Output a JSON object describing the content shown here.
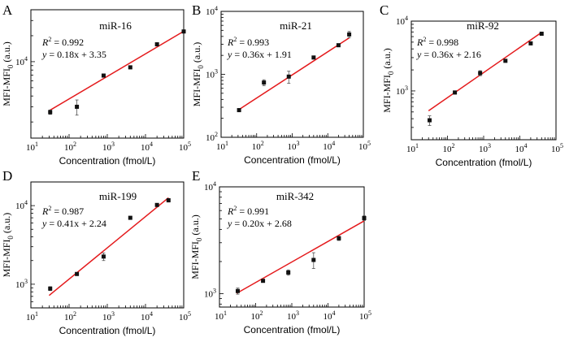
{
  "colors": {
    "fit_line": "#e41a1c",
    "points": "#111111",
    "axis": "#000000"
  },
  "chart_data": [
    {
      "panel": "A",
      "type": "scatter",
      "title": "miR-16",
      "xlabel": "Concentration (fmol/L)",
      "ylabel": "MFI-MFI0 (a.u.)",
      "ylabel_main": "MFI-MFI",
      "ylabel_sub": "0",
      "ylabel_unit": " (a.u.)",
      "xscale": "log",
      "yscale": "log",
      "xlim": [
        10,
        100000
      ],
      "ylim": [
        1300,
        40000
      ],
      "xticks": [
        {
          "v": 10,
          "e": "1"
        },
        {
          "v": 100,
          "e": "2"
        },
        {
          "v": 1000,
          "e": "3"
        },
        {
          "v": 10000,
          "e": "4"
        },
        {
          "v": 100000,
          "e": "5"
        }
      ],
      "yticks": [
        {
          "v": 10000,
          "e": "4"
        }
      ],
      "r2_label": "R",
      "r2_exp": "2",
      "r2_value": " = 0.992",
      "eq_y": "y",
      "eq_rest": " = 0.18x + 3.35",
      "x": [
        32,
        160,
        800,
        4000,
        20000,
        100000
      ],
      "y": [
        2600,
        3000,
        6900,
        8600,
        15900,
        22400
      ],
      "yerr": [
        150,
        600,
        300,
        350,
        500,
        600
      ],
      "fit": [
        [
          30,
          2700
        ],
        [
          100000,
          22500
        ]
      ]
    },
    {
      "panel": "B",
      "type": "scatter",
      "title": "miR-21",
      "xlabel": "Concentration (fmol/L)",
      "ylabel": "MFI-MFI0 (a.u.)",
      "ylabel_main": "MFI-MFI",
      "ylabel_sub": "0",
      "ylabel_unit": " (a.u.)",
      "xscale": "log",
      "yscale": "log",
      "xlim": [
        10,
        100000
      ],
      "ylim": [
        100,
        10000
      ],
      "xticks": [
        {
          "v": 10,
          "e": "1"
        },
        {
          "v": 100,
          "e": "2"
        },
        {
          "v": 1000,
          "e": "3"
        },
        {
          "v": 10000,
          "e": "4"
        },
        {
          "v": 100000,
          "e": "5"
        }
      ],
      "yticks": [
        {
          "v": 100,
          "e": "2"
        },
        {
          "v": 1000,
          "e": "3"
        },
        {
          "v": 10000,
          "e": "4"
        }
      ],
      "r2_label": "R",
      "r2_exp": "2",
      "r2_value": " = 0.993",
      "eq_y": "y",
      "eq_rest": " = 0.36x + 1.91",
      "x": [
        32,
        160,
        800,
        4000,
        20000,
        40000
      ],
      "y": [
        270,
        740,
        920,
        1850,
        2900,
        4300
      ],
      "yerr": [
        15,
        80,
        200,
        100,
        120,
        500
      ],
      "fit": [
        [
          30,
          270
        ],
        [
          40000,
          3800
        ]
      ]
    },
    {
      "panel": "C",
      "type": "scatter",
      "title": "miR-92",
      "xlabel": "Concentration (fmol/L)",
      "ylabel": "MFI-MFI0 (a.u.)",
      "ylabel_main": "MFI-MFI",
      "ylabel_sub": "0",
      "ylabel_unit": " (a.u.)",
      "xscale": "log",
      "yscale": "log",
      "xlim": [
        10,
        100000
      ],
      "ylim": [
        200,
        10000
      ],
      "xticks": [
        {
          "v": 10,
          "e": "1"
        },
        {
          "v": 100,
          "e": "2"
        },
        {
          "v": 1000,
          "e": "3"
        },
        {
          "v": 10000,
          "e": "4"
        },
        {
          "v": 100000,
          "e": "5"
        }
      ],
      "yticks": [
        {
          "v": 1000,
          "e": "3"
        },
        {
          "v": 10000,
          "e": "4"
        }
      ],
      "r2_label": "R",
      "r2_exp": "2",
      "r2_value": " = 0.998",
      "eq_y": "y",
      "eq_rest": " = 0.36x + 2.16",
      "x": [
        32,
        160,
        800,
        4000,
        20000,
        40000
      ],
      "y": [
        380,
        950,
        1800,
        2700,
        4800,
        6600
      ],
      "yerr": [
        60,
        50,
        150,
        120,
        200,
        200
      ],
      "fit": [
        [
          30,
          520
        ],
        [
          40000,
          6900
        ]
      ]
    },
    {
      "panel": "D",
      "type": "scatter",
      "title": "miR-199",
      "xlabel": "Concentration (fmol/L)",
      "ylabel": "MFI-MFI0 (a.u.)",
      "ylabel_main": "MFI-MFI",
      "ylabel_sub": "0",
      "ylabel_unit": " (a.u.)",
      "xscale": "log",
      "yscale": "log",
      "xlim": [
        10,
        100000
      ],
      "ylim": [
        500,
        20000
      ],
      "xticks": [
        {
          "v": 10,
          "e": "1"
        },
        {
          "v": 100,
          "e": "2"
        },
        {
          "v": 1000,
          "e": "3"
        },
        {
          "v": 10000,
          "e": "4"
        },
        {
          "v": 100000,
          "e": "5"
        }
      ],
      "yticks": [
        {
          "v": 1000,
          "e": "3"
        },
        {
          "v": 10000,
          "e": "4"
        }
      ],
      "r2_label": "R",
      "r2_exp": "2",
      "r2_value": " = 0.987",
      "eq_y": "y",
      "eq_rest": " = 0.41x + 2.24",
      "x": [
        32,
        160,
        800,
        4000,
        20000,
        40000
      ],
      "y": [
        880,
        1350,
        2250,
        7000,
        10200,
        11700
      ],
      "yerr": [
        50,
        60,
        250,
        200,
        300,
        600
      ],
      "fit": [
        [
          30,
          720
        ],
        [
          40000,
          12600
        ]
      ]
    },
    {
      "panel": "E",
      "type": "scatter",
      "title": "miR-342",
      "xlabel": "Concentration (fmol/L)",
      "ylabel": "MFI-MFI0 (a.u.)",
      "ylabel_main": "MFI-MFI",
      "ylabel_sub": "0",
      "ylabel_unit": " (a.u.)",
      "xscale": "log",
      "yscale": "log",
      "xlim": [
        10,
        100000
      ],
      "ylim": [
        750,
        10000
      ],
      "xticks": [
        {
          "v": 10,
          "e": "1"
        },
        {
          "v": 100,
          "e": "2"
        },
        {
          "v": 1000,
          "e": "3"
        },
        {
          "v": 10000,
          "e": "4"
        },
        {
          "v": 100000,
          "e": "5"
        }
      ],
      "yticks": [
        {
          "v": 1000,
          "e": "3"
        },
        {
          "v": 10000,
          "e": "4"
        }
      ],
      "r2_label": "R",
      "r2_exp": "2",
      "r2_value": " = 0.991",
      "eq_y": "y",
      "eq_rest": " = 0.20x + 2.68",
      "x": [
        32,
        160,
        800,
        4000,
        20000,
        100000
      ],
      "y": [
        1060,
        1320,
        1580,
        2070,
        3300,
        5100
      ],
      "yerr": [
        70,
        40,
        90,
        350,
        150,
        250
      ],
      "fit": [
        [
          30,
          1010
        ],
        [
          100000,
          4800
        ]
      ]
    }
  ]
}
